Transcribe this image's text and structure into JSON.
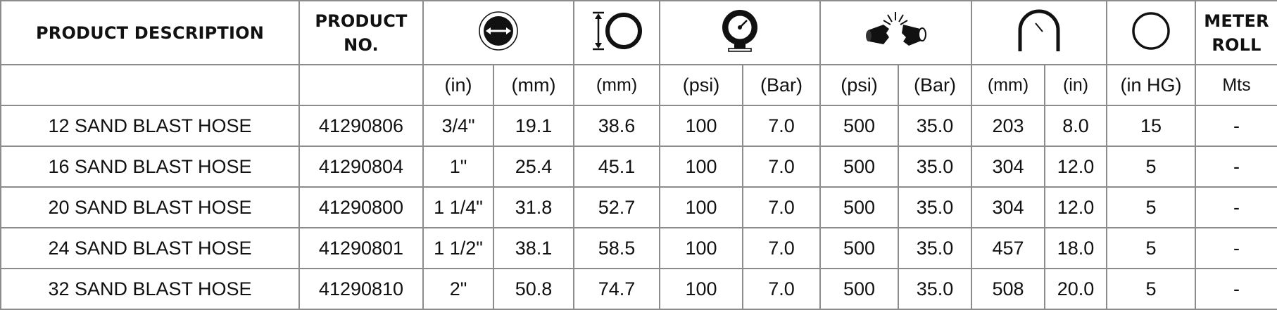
{
  "header": {
    "description": "PRODUCT DESCRIPTION",
    "product_no": "PRODUCT NO.",
    "meter_roll": "METER ROLL",
    "icons": [
      "hose-id-icon",
      "outer-diameter-icon",
      "pressure-gauge-icon",
      "burst-pressure-icon",
      "bend-radius-icon",
      "vacuum-icon"
    ]
  },
  "units": [
    "(in)",
    "(mm)",
    "(mm)",
    "(psi)",
    "(Bar)",
    "(psi)",
    "(Bar)",
    "(mm)",
    "(in)",
    "(in HG)",
    "Mts"
  ],
  "rows": [
    {
      "description": "12 SAND BLAST HOSE",
      "product_no": "41290806",
      "id_in": "3/4\"",
      "id_mm": "19.1",
      "od_mm": "38.6",
      "wp_psi": "100",
      "wp_bar": "7.0",
      "bp_psi": "500",
      "bp_bar": "35.0",
      "br_mm": "203",
      "br_in": "8.0",
      "vac": "15",
      "meter": "-"
    },
    {
      "description": "16 SAND BLAST HOSE",
      "product_no": "41290804",
      "id_in": "1\"",
      "id_mm": "25.4",
      "od_mm": "45.1",
      "wp_psi": "100",
      "wp_bar": "7.0",
      "bp_psi": "500",
      "bp_bar": "35.0",
      "br_mm": "304",
      "br_in": "12.0",
      "vac": "5",
      "meter": "-"
    },
    {
      "description": "20 SAND BLAST HOSE",
      "product_no": "41290800",
      "id_in": "1 1/4\"",
      "id_mm": "31.8",
      "od_mm": "52.7",
      "wp_psi": "100",
      "wp_bar": "7.0",
      "bp_psi": "500",
      "bp_bar": "35.0",
      "br_mm": "304",
      "br_in": "12.0",
      "vac": "5",
      "meter": "-"
    },
    {
      "description": "24 SAND BLAST HOSE",
      "product_no": "41290801",
      "id_in": "1 1/2\"",
      "id_mm": "38.1",
      "od_mm": "58.5",
      "wp_psi": "100",
      "wp_bar": "7.0",
      "bp_psi": "500",
      "bp_bar": "35.0",
      "br_mm": "457",
      "br_in": "18.0",
      "vac": "5",
      "meter": "-"
    },
    {
      "description": "32 SAND BLAST HOSE",
      "product_no": "41290810",
      "id_in": "2\"",
      "id_mm": "50.8",
      "od_mm": "74.7",
      "wp_psi": "100",
      "wp_bar": "7.0",
      "bp_psi": "500",
      "bp_bar": "35.0",
      "br_mm": "508",
      "br_in": "20.0",
      "vac": "5",
      "meter": "-"
    }
  ]
}
